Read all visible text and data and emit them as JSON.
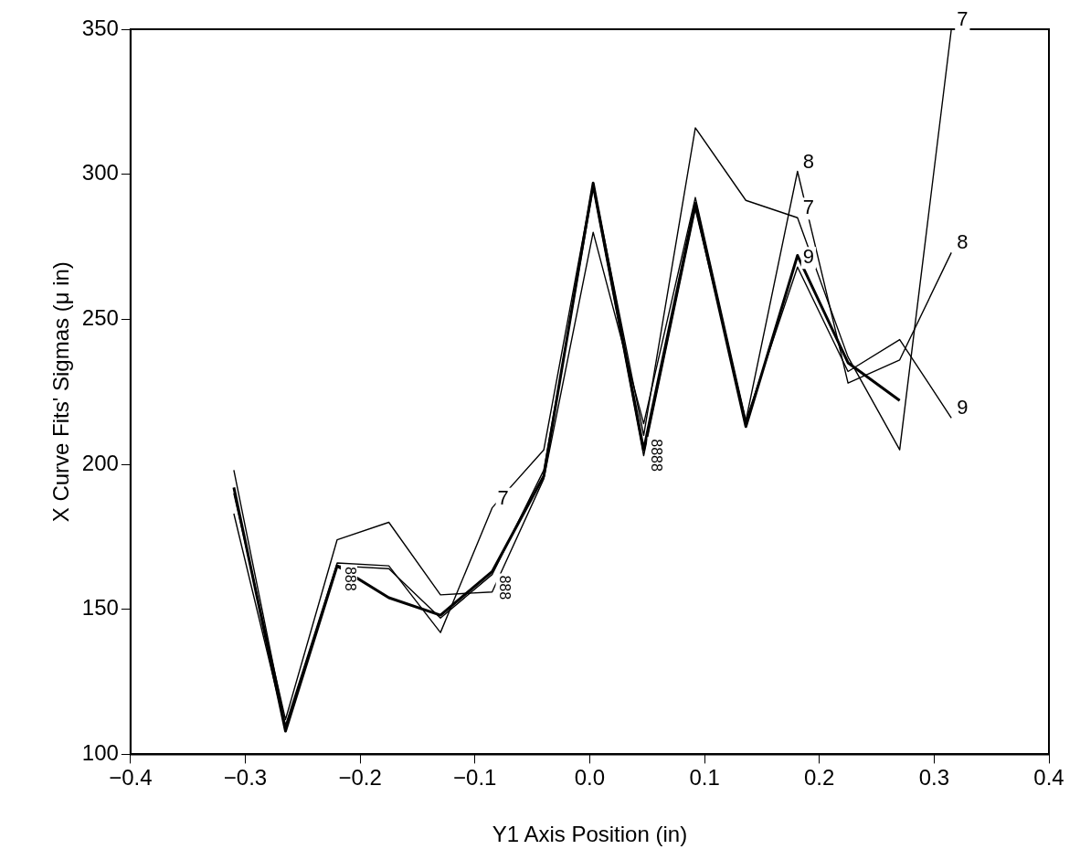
{
  "chart_data": {
    "type": "line",
    "xlabel": "Y1 Axis Position (in)",
    "ylabel": "X Curve Fits' Sigmas (μ in)",
    "x": [
      -0.31,
      -0.265,
      -0.22,
      -0.175,
      -0.13,
      -0.085,
      -0.04,
      0.003,
      0.047,
      0.092,
      0.136,
      0.181,
      0.225,
      0.27,
      0.315
    ],
    "series": [
      {
        "color": "#000000",
        "values": [
          192,
          108,
          165,
          154,
          148,
          163,
          196,
          297,
          205,
          290,
          213,
          272,
          235,
          222,
          null
        ]
      },
      {
        "color": "#000000",
        "values": [
          198,
          110,
          166,
          165,
          142,
          185,
          205,
          297,
          210,
          316,
          291,
          285,
          237,
          205,
          350
        ]
      },
      {
        "color": "#000000",
        "values": [
          190,
          112,
          174,
          180,
          155,
          156,
          195,
          280,
          214,
          292,
          215,
          301,
          228,
          236,
          273
        ]
      },
      {
        "color": "#000000",
        "values": [
          183,
          109,
          165,
          164,
          147,
          162,
          198,
          295,
          203,
          288,
          215,
          268,
          232,
          243,
          216
        ]
      }
    ],
    "xlim": [
      -0.4,
      0.4
    ],
    "xticks": [
      {
        "value": -0.4,
        "label": "−0.4"
      },
      {
        "value": -0.3,
        "label": "−0.3"
      },
      {
        "value": -0.2,
        "label": "−0.2"
      },
      {
        "value": -0.1,
        "label": "−0.1"
      },
      {
        "value": 0,
        "label": "0.0"
      },
      {
        "value": 0.1,
        "label": "0.1"
      },
      {
        "value": 0.2,
        "label": "0.2"
      },
      {
        "value": 0.3,
        "label": "0.3"
      },
      {
        "value": 0.4,
        "label": "0.4"
      }
    ],
    "ylim": [
      100,
      350
    ],
    "yticks": [
      100,
      150,
      200,
      250,
      300,
      350
    ],
    "annotations": [
      {
        "text": "7",
        "x": -0.085,
        "y": 185
      },
      {
        "text": "888",
        "x": -0.22,
        "y": 166
      },
      {
        "text": "888",
        "x": -0.085,
        "y": 163
      },
      {
        "text": "8888",
        "x": 0.047,
        "y": 210
      },
      {
        "text": "8",
        "x": 0.181,
        "y": 301
      },
      {
        "text": "7",
        "x": 0.181,
        "y": 285
      },
      {
        "text": "9",
        "x": 0.181,
        "y": 268
      },
      {
        "text": "7",
        "x": 0.315,
        "y": 350
      },
      {
        "text": "8",
        "x": 0.315,
        "y": 273
      },
      {
        "text": "9",
        "x": 0.315,
        "y": 216
      }
    ],
    "legend": false,
    "grid": false,
    "marker": "none",
    "line_style": "solid"
  }
}
